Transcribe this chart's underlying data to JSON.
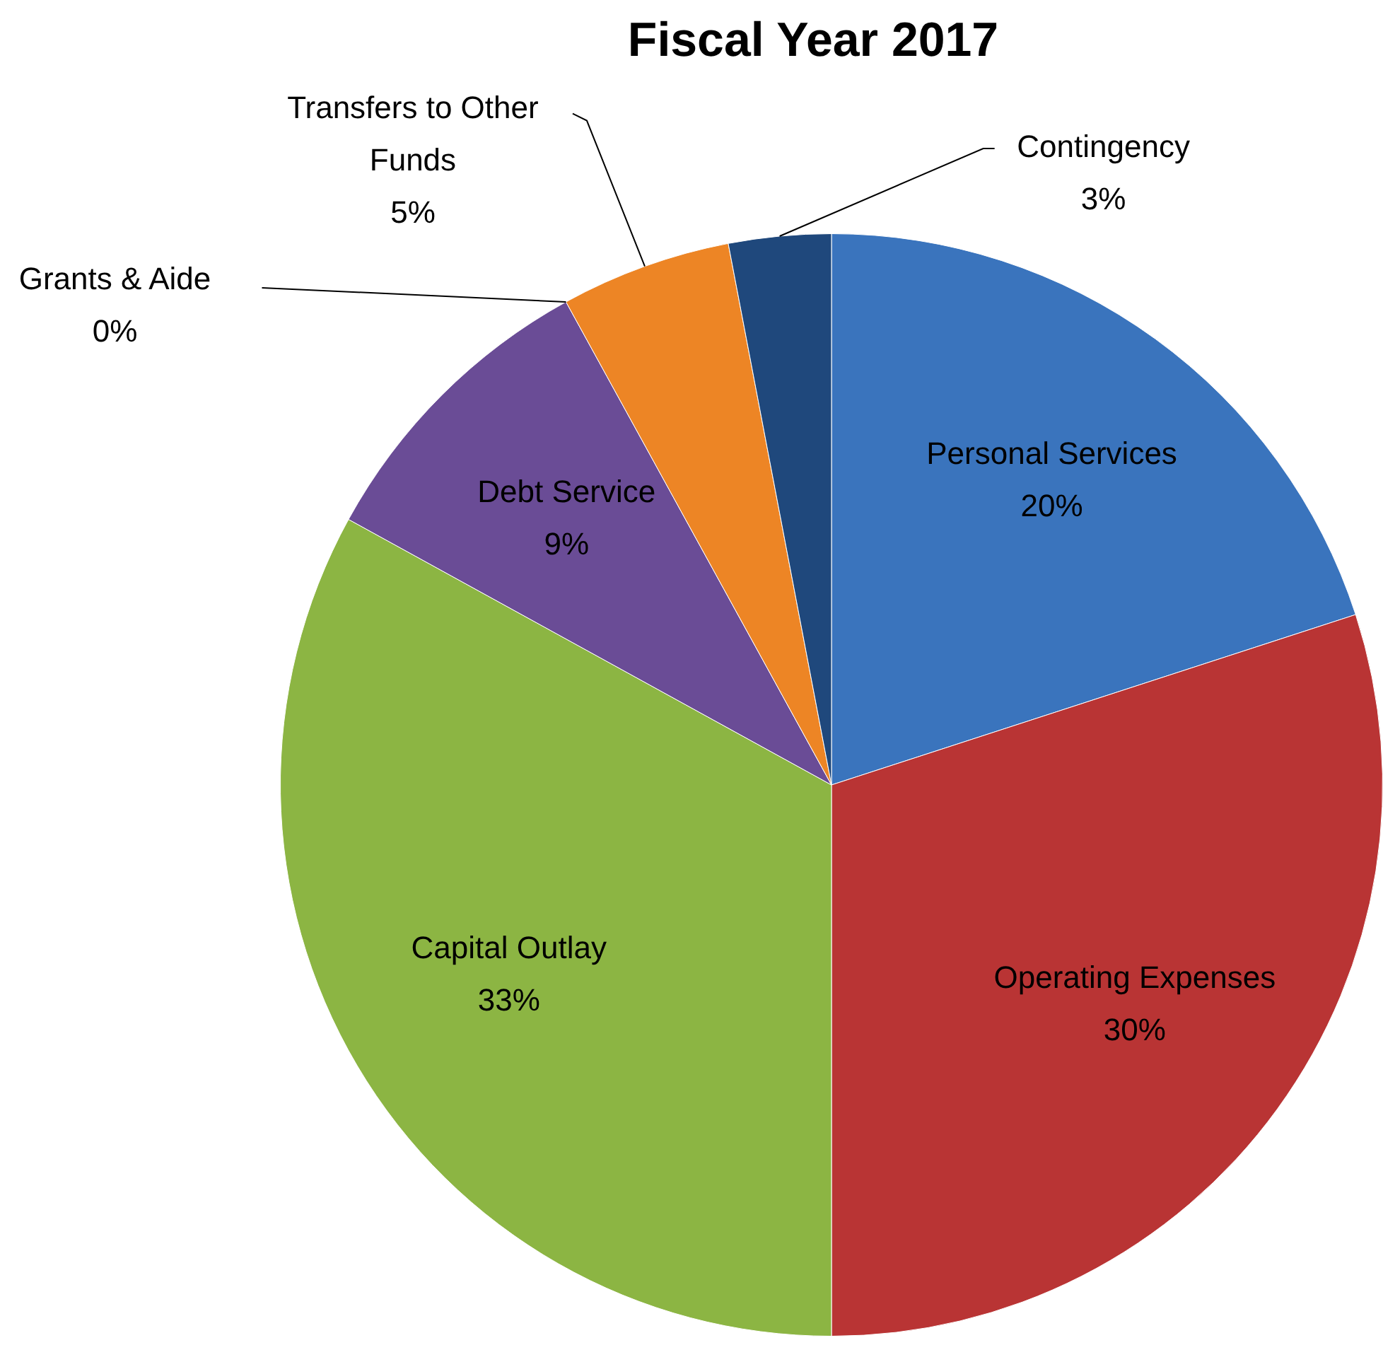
{
  "chart_data": {
    "type": "pie",
    "title": "Fiscal Year 2017",
    "categories": [
      "Personal Services",
      "Operating Expenses",
      "Capital Outlay",
      "Debt Service",
      "Grants & Aide",
      "Transfers to Other Funds",
      "Contingency"
    ],
    "values": [
      20,
      30,
      33,
      9,
      0,
      5,
      3
    ],
    "value_labels": [
      "20%",
      "30%",
      "33%",
      "9%",
      "0%",
      "5%",
      "3%"
    ],
    "colors": [
      "#3a74bd",
      "#b93434",
      "#8cb543",
      "#6a4c96",
      "#4bacc6",
      "#ed8525",
      "#1f487c"
    ],
    "legend": false
  }
}
